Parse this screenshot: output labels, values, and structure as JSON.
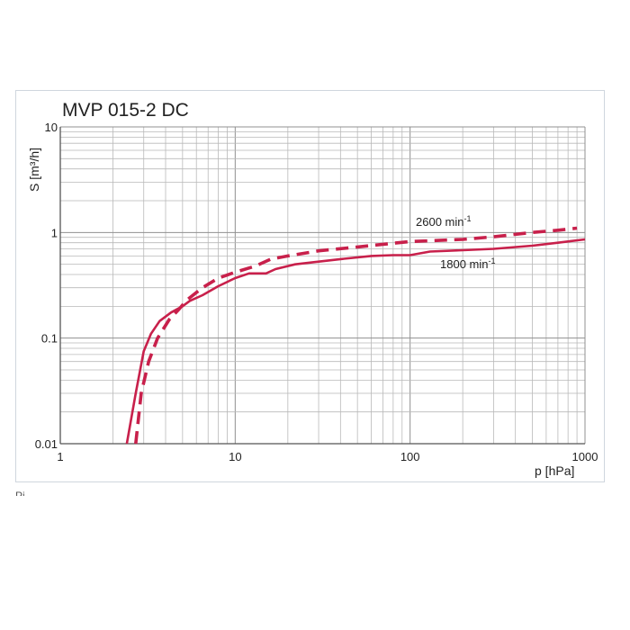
{
  "chart_data": {
    "type": "line",
    "title": "MVP 015-2 DC",
    "xlabel": "p [hPa]",
    "ylabel": "S  [m³/h]",
    "xscale": "log",
    "yscale": "log",
    "xlim": [
      1,
      1000
    ],
    "ylim": [
      0.01,
      10
    ],
    "grid": true,
    "x_ticks": [
      "1",
      "10",
      "100",
      "1000"
    ],
    "y_ticks": [
      "0.01",
      "0.1",
      "1",
      "10"
    ],
    "series": [
      {
        "name": "1800 min",
        "name_superscript": "-1",
        "style": "solid",
        "color": "#c8204b",
        "points": [
          [
            2.4,
            0.01
          ],
          [
            2.7,
            0.03
          ],
          [
            3.0,
            0.075
          ],
          [
            3.3,
            0.11
          ],
          [
            3.7,
            0.145
          ],
          [
            4.3,
            0.175
          ],
          [
            5.0,
            0.2
          ],
          [
            5.5,
            0.225
          ],
          [
            6.5,
            0.255
          ],
          [
            8.0,
            0.31
          ],
          [
            10,
            0.37
          ],
          [
            12,
            0.41
          ],
          [
            15,
            0.41
          ],
          [
            17,
            0.45
          ],
          [
            22,
            0.5
          ],
          [
            30,
            0.53
          ],
          [
            40,
            0.56
          ],
          [
            60,
            0.6
          ],
          [
            80,
            0.61
          ],
          [
            100,
            0.61
          ],
          [
            130,
            0.66
          ],
          [
            200,
            0.68
          ],
          [
            300,
            0.7
          ],
          [
            500,
            0.75
          ],
          [
            700,
            0.8
          ],
          [
            1000,
            0.86
          ]
        ]
      },
      {
        "name": "2600 min",
        "name_superscript": "-1",
        "style": "dashed",
        "color": "#c8204b",
        "points": [
          [
            2.7,
            0.01
          ],
          [
            2.9,
            0.03
          ],
          [
            3.2,
            0.06
          ],
          [
            3.6,
            0.1
          ],
          [
            4.2,
            0.15
          ],
          [
            4.8,
            0.19
          ],
          [
            5.3,
            0.23
          ],
          [
            6.5,
            0.3
          ],
          [
            8.0,
            0.37
          ],
          [
            10,
            0.42
          ],
          [
            13,
            0.48
          ],
          [
            16,
            0.56
          ],
          [
            20,
            0.6
          ],
          [
            30,
            0.67
          ],
          [
            50,
            0.73
          ],
          [
            80,
            0.79
          ],
          [
            100,
            0.82
          ],
          [
            200,
            0.86
          ],
          [
            300,
            0.91
          ],
          [
            500,
            1.0
          ],
          [
            700,
            1.05
          ],
          [
            900,
            1.1
          ]
        ]
      }
    ],
    "annotations": {
      "footnote_partial": "Pi  ..."
    }
  }
}
